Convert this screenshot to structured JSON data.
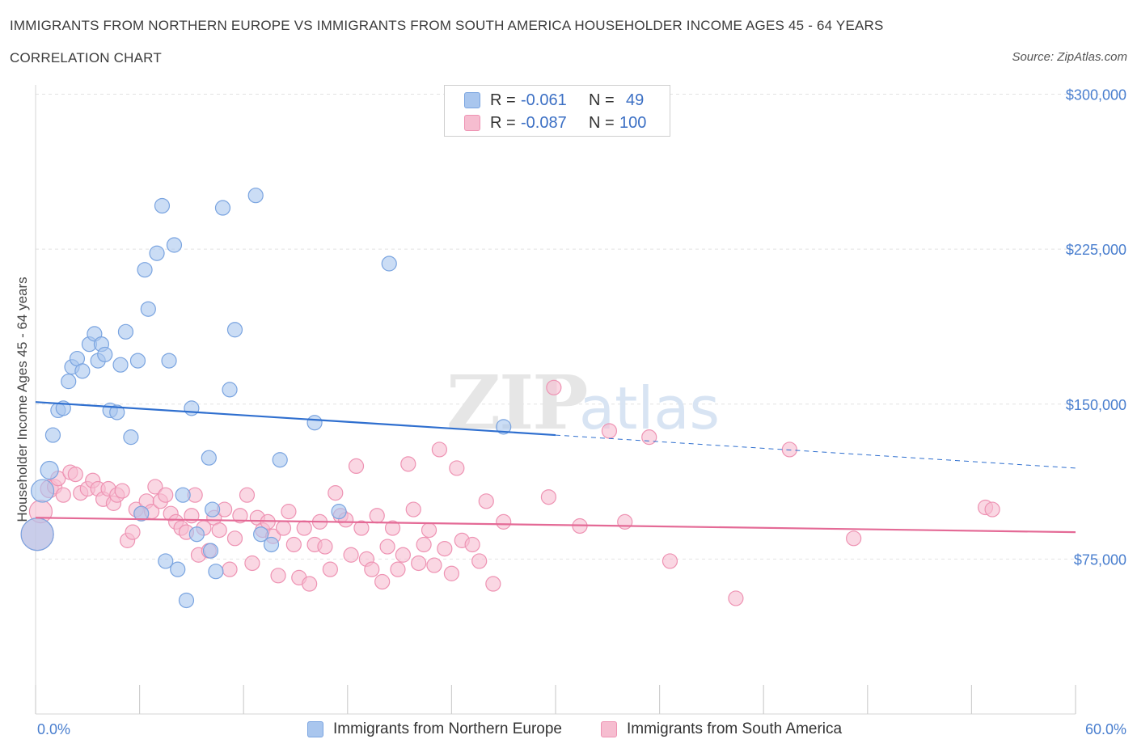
{
  "title": "IMMIGRANTS FROM NORTHERN EUROPE VS IMMIGRANTS FROM SOUTH AMERICA HOUSEHOLDER INCOME AGES 45 - 64 YEARS",
  "subtitle": "CORRELATION CHART",
  "source": "Source: ZipAtlas.com",
  "watermark": {
    "zip": "ZIP",
    "atlas": "atlas"
  },
  "colors": {
    "blue_fill": "#a9c6ee",
    "blue_stroke": "#7aa4e0",
    "blue_line": "#2f6fcf",
    "pink_fill": "#f6bdd0",
    "pink_stroke": "#ee93b3",
    "pink_line": "#e46a96",
    "tick_text": "#4a7fcf"
  },
  "legend": {
    "series1": {
      "r_label": "R =",
      "r_value": "-0.061",
      "n_label": "N =",
      "n_value": "49"
    },
    "series2": {
      "r_label": "R =",
      "r_value": "-0.087",
      "n_label": "N =",
      "n_value": "100"
    }
  },
  "chart_data": {
    "type": "scatter",
    "title": "IMMIGRANTS FROM NORTHERN EUROPE VS IMMIGRANTS FROM SOUTH AMERICA HOUSEHOLDER INCOME AGES 45 - 64 YEARS",
    "xlabel": "",
    "ylabel": "Householder Income Ages 45 - 64 years",
    "xlim": [
      0,
      60
    ],
    "ylim": [
      0,
      310000
    ],
    "x_tick_labels": [
      "0.0%",
      "60.0%"
    ],
    "y_ticks": [
      {
        "value": 75000,
        "label": "$75,000"
      },
      {
        "value": 150000,
        "label": "$150,000"
      },
      {
        "value": 225000,
        "label": "$225,000"
      },
      {
        "value": 300000,
        "label": "$300,000"
      }
    ],
    "grid": true,
    "legend_position": "bottom",
    "series": [
      {
        "name": "Immigrants from Northern Europe",
        "color": "#a9c6ee",
        "trend": {
          "x": [
            0,
            30
          ],
          "y": [
            151000,
            135000
          ],
          "dashed_to_x": 60,
          "dashed_end_y": 119000
        },
        "points": [
          [
            0.1,
            87000,
            20
          ],
          [
            0.4,
            108000,
            14
          ],
          [
            0.8,
            118000,
            11
          ],
          [
            1.0,
            135000,
            9
          ],
          [
            1.3,
            147000,
            9
          ],
          [
            1.6,
            148000,
            9
          ],
          [
            1.9,
            161000,
            9
          ],
          [
            2.1,
            168000,
            9
          ],
          [
            2.4,
            172000,
            9
          ],
          [
            2.7,
            166000,
            9
          ],
          [
            3.1,
            179000,
            9
          ],
          [
            3.4,
            184000,
            9
          ],
          [
            3.6,
            171000,
            9
          ],
          [
            3.8,
            179000,
            9
          ],
          [
            4.0,
            174000,
            9
          ],
          [
            4.3,
            147000,
            9
          ],
          [
            4.7,
            146000,
            9
          ],
          [
            4.9,
            169000,
            9
          ],
          [
            5.2,
            185000,
            9
          ],
          [
            5.5,
            134000,
            9
          ],
          [
            5.9,
            171000,
            9
          ],
          [
            6.3,
            215000,
            9
          ],
          [
            6.5,
            196000,
            9
          ],
          [
            7.0,
            223000,
            9
          ],
          [
            7.3,
            246000,
            9
          ],
          [
            7.7,
            171000,
            9
          ],
          [
            8.0,
            227000,
            9
          ],
          [
            8.5,
            106000,
            9
          ],
          [
            6.1,
            97000,
            9
          ],
          [
            7.5,
            74000,
            9
          ],
          [
            8.2,
            70000,
            9
          ],
          [
            8.7,
            55000,
            9
          ],
          [
            9.0,
            148000,
            9
          ],
          [
            9.3,
            87000,
            9
          ],
          [
            10.1,
            79000,
            9
          ],
          [
            10.4,
            69000,
            9
          ],
          [
            10.8,
            245000,
            9
          ],
          [
            11.2,
            157000,
            9
          ],
          [
            11.5,
            186000,
            9
          ],
          [
            10.0,
            124000,
            9
          ],
          [
            10.2,
            99000,
            9
          ],
          [
            12.7,
            251000,
            9
          ],
          [
            13.0,
            87000,
            9
          ],
          [
            13.6,
            82000,
            9
          ],
          [
            14.1,
            123000,
            9
          ],
          [
            16.1,
            141000,
            9
          ],
          [
            17.5,
            98000,
            9
          ],
          [
            20.4,
            218000,
            9
          ],
          [
            27.0,
            139000,
            9
          ]
        ]
      },
      {
        "name": "Immigrants from South America",
        "color": "#f6bdd0",
        "trend": {
          "x": [
            0,
            60
          ],
          "y": [
            95000,
            88000
          ]
        },
        "points": [
          [
            0.1,
            87000,
            20
          ],
          [
            0.3,
            98000,
            14
          ],
          [
            0.8,
            109000,
            11
          ],
          [
            1.1,
            110000,
            9
          ],
          [
            1.3,
            114000,
            9
          ],
          [
            1.6,
            106000,
            9
          ],
          [
            2.0,
            117000,
            9
          ],
          [
            2.3,
            116000,
            9
          ],
          [
            2.6,
            107000,
            9
          ],
          [
            3.0,
            109000,
            9
          ],
          [
            3.3,
            113000,
            9
          ],
          [
            3.6,
            109000,
            9
          ],
          [
            3.9,
            104000,
            9
          ],
          [
            4.2,
            109000,
            9
          ],
          [
            4.5,
            102000,
            9
          ],
          [
            4.7,
            106000,
            9
          ],
          [
            5.0,
            108000,
            9
          ],
          [
            5.3,
            84000,
            9
          ],
          [
            5.6,
            88000,
            9
          ],
          [
            5.8,
            99000,
            9
          ],
          [
            6.1,
            97000,
            9
          ],
          [
            6.4,
            103000,
            9
          ],
          [
            6.7,
            98000,
            9
          ],
          [
            6.9,
            110000,
            9
          ],
          [
            7.2,
            103000,
            9
          ],
          [
            7.5,
            106000,
            9
          ],
          [
            7.8,
            97000,
            9
          ],
          [
            8.1,
            93000,
            9
          ],
          [
            8.4,
            90000,
            9
          ],
          [
            8.7,
            88000,
            9
          ],
          [
            9.0,
            96000,
            9
          ],
          [
            9.2,
            106000,
            9
          ],
          [
            9.4,
            77000,
            9
          ],
          [
            9.7,
            90000,
            9
          ],
          [
            10.0,
            79000,
            9
          ],
          [
            10.3,
            95000,
            9
          ],
          [
            10.6,
            89000,
            9
          ],
          [
            10.9,
            99000,
            9
          ],
          [
            11.2,
            70000,
            9
          ],
          [
            11.5,
            85000,
            9
          ],
          [
            11.8,
            96000,
            9
          ],
          [
            12.2,
            106000,
            9
          ],
          [
            12.5,
            73000,
            9
          ],
          [
            12.8,
            95000,
            9
          ],
          [
            13.1,
            89000,
            9
          ],
          [
            13.4,
            93000,
            9
          ],
          [
            13.7,
            86000,
            9
          ],
          [
            14.0,
            67000,
            9
          ],
          [
            14.3,
            90000,
            9
          ],
          [
            14.6,
            98000,
            9
          ],
          [
            14.9,
            82000,
            9
          ],
          [
            15.2,
            66000,
            9
          ],
          [
            15.5,
            90000,
            9
          ],
          [
            15.8,
            63000,
            9
          ],
          [
            16.1,
            82000,
            9
          ],
          [
            16.4,
            93000,
            9
          ],
          [
            16.7,
            81000,
            9
          ],
          [
            17.0,
            70000,
            9
          ],
          [
            17.3,
            107000,
            9
          ],
          [
            17.6,
            96000,
            9
          ],
          [
            17.9,
            94000,
            9
          ],
          [
            18.2,
            77000,
            9
          ],
          [
            18.5,
            120000,
            9
          ],
          [
            18.8,
            90000,
            9
          ],
          [
            19.1,
            75000,
            9
          ],
          [
            19.4,
            70000,
            9
          ],
          [
            19.7,
            96000,
            9
          ],
          [
            20.0,
            64000,
            9
          ],
          [
            20.3,
            81000,
            9
          ],
          [
            20.6,
            90000,
            9
          ],
          [
            20.9,
            70000,
            9
          ],
          [
            21.2,
            77000,
            9
          ],
          [
            21.5,
            121000,
            9
          ],
          [
            21.8,
            99000,
            9
          ],
          [
            22.1,
            73000,
            9
          ],
          [
            22.4,
            82000,
            9
          ],
          [
            22.7,
            89000,
            9
          ],
          [
            23.0,
            72000,
            9
          ],
          [
            23.3,
            128000,
            9
          ],
          [
            23.6,
            80000,
            9
          ],
          [
            24.0,
            68000,
            9
          ],
          [
            24.3,
            119000,
            9
          ],
          [
            24.6,
            84000,
            9
          ],
          [
            25.2,
            82000,
            9
          ],
          [
            25.6,
            74000,
            9
          ],
          [
            26.0,
            103000,
            9
          ],
          [
            26.4,
            63000,
            9
          ],
          [
            27.0,
            93000,
            9
          ],
          [
            29.6,
            105000,
            9
          ],
          [
            29.9,
            158000,
            9
          ],
          [
            31.4,
            91000,
            9
          ],
          [
            33.1,
            137000,
            9
          ],
          [
            34.0,
            93000,
            9
          ],
          [
            35.4,
            134000,
            9
          ],
          [
            36.6,
            74000,
            9
          ],
          [
            40.4,
            56000,
            9
          ],
          [
            43.5,
            128000,
            9
          ],
          [
            47.2,
            85000,
            9
          ],
          [
            54.8,
            100000,
            9
          ],
          [
            55.2,
            99000,
            9
          ]
        ]
      }
    ]
  }
}
